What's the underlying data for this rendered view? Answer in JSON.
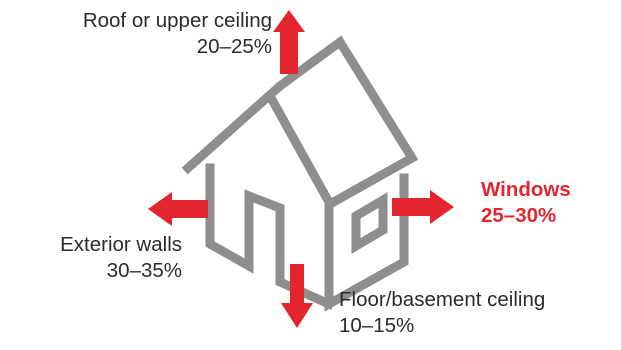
{
  "colors": {
    "house_outline": "#8e8e8e",
    "arrow": "#e3262e",
    "highlight_text": "#e3262e",
    "text": "#2b2b2b"
  },
  "labels": {
    "roof": {
      "name": "Roof or upper ceiling",
      "range": "20–25%"
    },
    "walls": {
      "name": "Exterior walls",
      "range": "30–35%"
    },
    "windows": {
      "name": "Windows",
      "range": "25–30%"
    },
    "floor": {
      "name": "Floor/basement ceiling",
      "range": "10–15%"
    }
  }
}
